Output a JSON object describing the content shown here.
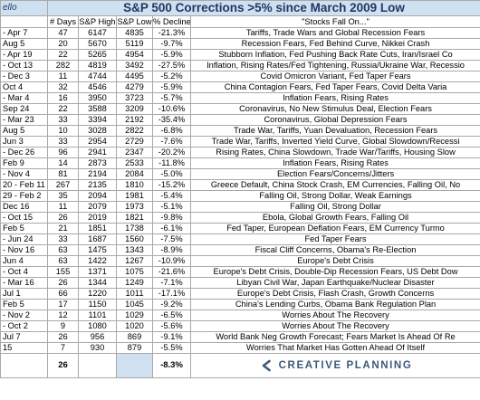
{
  "sheet": {
    "author": "ello",
    "title": "S&P 500 Corrections >5% since March 2009 Low",
    "headers": [
      "",
      "# Days",
      "S&P High",
      "S&P Low",
      "% Decline",
      "\"Stocks Fall On...\""
    ],
    "rows": [
      [
        "- Apr 7",
        "47",
        "6147",
        "4835",
        "-21.3%",
        "Tariffs, Trade Wars and Global Recession Fears"
      ],
      [
        "Aug 5",
        "20",
        "5670",
        "5119",
        "-9.7%",
        "Recession Fears, Fed Behind Curve, Nikkei Crash"
      ],
      [
        "- Apr 19",
        "22",
        "5265",
        "4954",
        "-5.9%",
        "Stubborn Inflation, Fed Pushing Back Rate Cuts, Iran/Israel Co"
      ],
      [
        "- Oct 13",
        "282",
        "4819",
        "3492",
        "-27.5%",
        "Inflation, Rising Rates/Fed Tightening, Russia/Ukraine War, Recessio"
      ],
      [
        "- Dec 3",
        "11",
        "4744",
        "4495",
        "-5.2%",
        "Covid Omicron Variant, Fed Taper Fears"
      ],
      [
        "Oct 4",
        "32",
        "4546",
        "4279",
        "-5.9%",
        "China Contagion Fears, Fed Taper Fears, Covid Delta Varia"
      ],
      [
        "- Mar 4",
        "16",
        "3950",
        "3723",
        "-5.7%",
        "Inflation Fears, Rising Rates"
      ],
      [
        "Sep 24",
        "22",
        "3588",
        "3209",
        "-10.6%",
        "Coronavirus, No New Stimulus Deal, Election Fears"
      ],
      [
        "- Mar 23",
        "33",
        "3394",
        "2192",
        "-35.4%",
        "Coronavirus, Global Depression Fears"
      ],
      [
        "Aug 5",
        "10",
        "3028",
        "2822",
        "-6.8%",
        "Trade War, Tariffs, Yuan Devaluation, Recession Fears"
      ],
      [
        "Jun 3",
        "33",
        "2954",
        "2729",
        "-7.6%",
        "Trade War, Tariffs, Inverted Yield Curve, Global Slowdown/Recessi"
      ],
      [
        "- Dec 26",
        "96",
        "2941",
        "2347",
        "-20.2%",
        "Rising Rates, China Slowdown, Trade War/Tariffs, Housing Slow"
      ],
      [
        "Feb 9",
        "14",
        "2873",
        "2533",
        "-11.8%",
        "Inflation Fears, Rising Rates"
      ],
      [
        "- Nov 4",
        "81",
        "2194",
        "2084",
        "-5.0%",
        "Election Fears/Concerns/Jitters"
      ],
      [
        "20 - Feb 11",
        "267",
        "2135",
        "1810",
        "-15.2%",
        "Greece Default, China Stock Crash, EM Currencies, Falling Oil, No"
      ],
      [
        "29 - Feb 2",
        "35",
        "2094",
        "1981",
        "-5.4%",
        "Falling Oil, Strong Dollar, Weak Earnings"
      ],
      [
        "Dec 16",
        "11",
        "2079",
        "1973",
        "-5.1%",
        "Falling Oil, Strong Dollar"
      ],
      [
        "- Oct 15",
        "26",
        "2019",
        "1821",
        "-9.8%",
        "Ebola, Global Growth Fears, Falling Oil"
      ],
      [
        "Feb 5",
        "21",
        "1851",
        "1738",
        "-6.1%",
        "Fed Taper, European Deflation Fears, EM Currency Turmo"
      ],
      [
        "- Jun 24",
        "33",
        "1687",
        "1560",
        "-7.5%",
        "Fed Taper Fears"
      ],
      [
        "- Nov 16",
        "63",
        "1475",
        "1343",
        "-8.9%",
        "Fiscal Cliff Concerns, Obama's Re-Election"
      ],
      [
        "Jun 4",
        "63",
        "1422",
        "1267",
        "-10.9%",
        "Europe's Debt Crisis"
      ],
      [
        "- Oct 4",
        "155",
        "1371",
        "1075",
        "-21.6%",
        "Europe's Debt Crisis, Double-Dip Recession Fears, US Debt Dow"
      ],
      [
        "- Mar 16",
        "26",
        "1344",
        "1249",
        "-7.1%",
        "Libyan Civil War, Japan Earthquake/Nuclear Disaster"
      ],
      [
        "Jul 1",
        "66",
        "1220",
        "1011",
        "-17.1%",
        "Europe's Debt Crisis, Flash Crash, Growth Concerns"
      ],
      [
        "Feb 5",
        "17",
        "1150",
        "1045",
        "-9.2%",
        "China's Lending Curbs, Obama Bank Regulation Plan"
      ],
      [
        "- Nov 2",
        "12",
        "1101",
        "1029",
        "-6.5%",
        "Worries About The Recovery"
      ],
      [
        "- Oct 2",
        "9",
        "1080",
        "1020",
        "-5.6%",
        "Worries About The Recovery"
      ],
      [
        "Jul 7",
        "26",
        "956",
        "869",
        "-9.1%",
        "World Bank Neg Growth Forecast; Fears Market Is Ahead Of Re"
      ],
      [
        "15",
        "7",
        "930",
        "879",
        "-5.5%",
        "Worries That Market Has Gotten Ahead Of Itself"
      ]
    ],
    "summary": {
      "days": "26",
      "decline": "-8.3%"
    },
    "logo_text": "CREATIVE PLANNING",
    "colors": {
      "header_fill": "#cfe0f0",
      "title_text": "#1f3864",
      "logo": "#3d5a7a"
    }
  }
}
